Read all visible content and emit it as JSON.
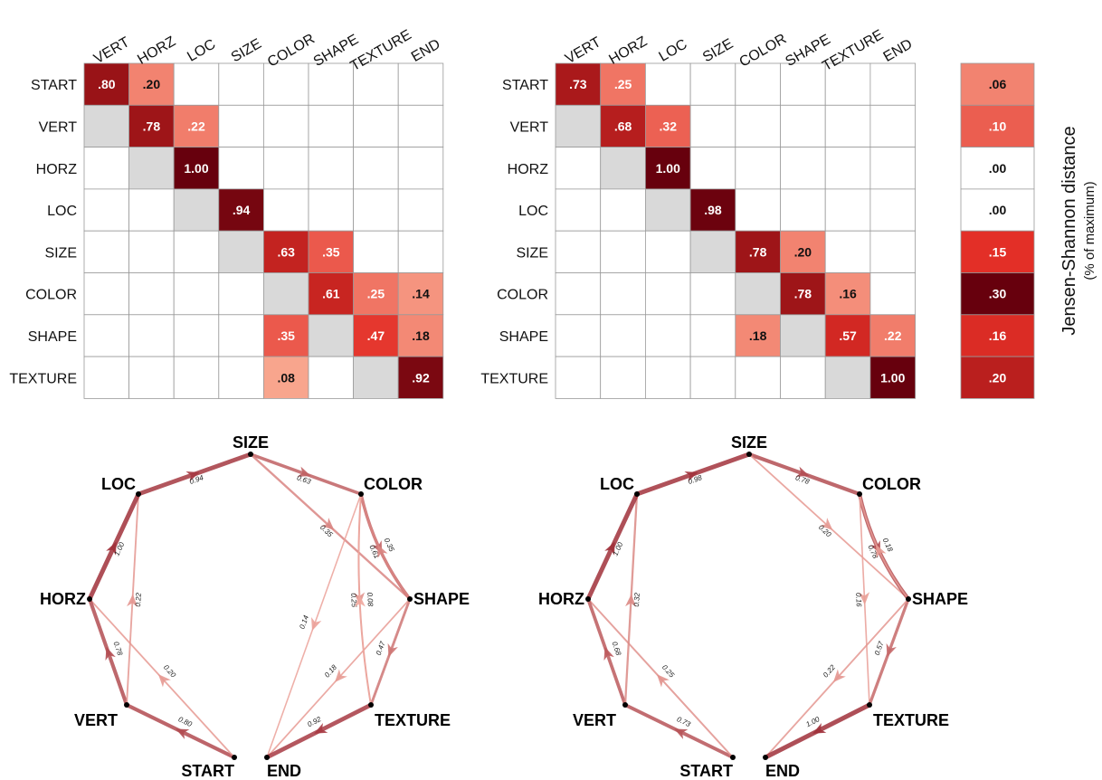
{
  "chart_data": [
    {
      "type": "heatmap",
      "panel": "left",
      "rows": [
        "START",
        "VERT",
        "HORZ",
        "LOC",
        "SIZE",
        "COLOR",
        "SHAPE",
        "TEXTURE"
      ],
      "columns": [
        "VERT",
        "HORZ",
        "LOC",
        "SIZE",
        "COLOR",
        "SHAPE",
        "TEXTURE",
        "END"
      ],
      "values": [
        [
          0.8,
          0.2,
          null,
          null,
          null,
          null,
          null,
          null
        ],
        [
          null,
          0.78,
          0.22,
          null,
          null,
          null,
          null,
          null
        ],
        [
          null,
          null,
          1.0,
          null,
          null,
          null,
          null,
          null
        ],
        [
          null,
          null,
          null,
          0.94,
          null,
          null,
          null,
          null
        ],
        [
          null,
          null,
          null,
          null,
          0.63,
          0.35,
          null,
          null
        ],
        [
          null,
          null,
          null,
          null,
          null,
          0.61,
          0.25,
          0.14
        ],
        [
          null,
          null,
          null,
          null,
          0.35,
          null,
          0.47,
          0.18
        ],
        [
          null,
          null,
          null,
          null,
          0.08,
          null,
          null,
          0.92
        ]
      ],
      "labels": [
        [
          ".80",
          ".20",
          "",
          "",
          "",
          "",
          "",
          ""
        ],
        [
          "",
          ".78",
          ".22",
          "",
          "",
          "",
          "",
          ""
        ],
        [
          "",
          "",
          "1.00",
          "",
          "",
          "",
          "",
          ""
        ],
        [
          "",
          "",
          "",
          ".94",
          "",
          "",
          "",
          ""
        ],
        [
          "",
          "",
          "",
          "",
          ".63",
          ".35",
          "",
          ""
        ],
        [
          "",
          "",
          "",
          "",
          "",
          ".61",
          ".25",
          ".14"
        ],
        [
          "",
          "",
          "",
          "",
          ".35",
          "",
          ".47",
          ".18"
        ],
        [
          "",
          "",
          "",
          "",
          ".08",
          "",
          "",
          ".92"
        ]
      ],
      "self_cells": [
        [
          1,
          0
        ],
        [
          2,
          1
        ],
        [
          3,
          2
        ],
        [
          4,
          3
        ],
        [
          5,
          4
        ],
        [
          6,
          5
        ],
        [
          7,
          6
        ]
      ],
      "self_color": "#d9d9d9"
    },
    {
      "type": "heatmap",
      "panel": "right",
      "rows": [
        "START",
        "VERT",
        "HORZ",
        "LOC",
        "SIZE",
        "COLOR",
        "SHAPE",
        "TEXTURE"
      ],
      "columns": [
        "VERT",
        "HORZ",
        "LOC",
        "SIZE",
        "COLOR",
        "SHAPE",
        "TEXTURE",
        "END"
      ],
      "values": [
        [
          0.73,
          0.25,
          null,
          null,
          null,
          null,
          null,
          null
        ],
        [
          null,
          0.68,
          0.32,
          null,
          null,
          null,
          null,
          null
        ],
        [
          null,
          null,
          1.0,
          null,
          null,
          null,
          null,
          null
        ],
        [
          null,
          null,
          null,
          0.98,
          null,
          null,
          null,
          null
        ],
        [
          null,
          null,
          null,
          null,
          0.78,
          0.2,
          null,
          null
        ],
        [
          null,
          null,
          null,
          null,
          null,
          0.78,
          0.16,
          null
        ],
        [
          null,
          null,
          null,
          null,
          0.18,
          null,
          0.57,
          0.22
        ],
        [
          null,
          null,
          null,
          null,
          null,
          null,
          null,
          1.0
        ]
      ],
      "labels": [
        [
          ".73",
          ".25",
          "",
          "",
          "",
          "",
          "",
          ""
        ],
        [
          "",
          ".68",
          ".32",
          "",
          "",
          "",
          "",
          ""
        ],
        [
          "",
          "",
          "1.00",
          "",
          "",
          "",
          "",
          ""
        ],
        [
          "",
          "",
          "",
          ".98",
          "",
          "",
          "",
          ""
        ],
        [
          "",
          "",
          "",
          "",
          ".78",
          ".20",
          "",
          ""
        ],
        [
          "",
          "",
          "",
          "",
          "",
          ".78",
          ".16",
          ""
        ],
        [
          "",
          "",
          "",
          "",
          ".18",
          "",
          ".57",
          ".22"
        ],
        [
          "",
          "",
          "",
          "",
          "",
          "",
          "",
          "1.00"
        ]
      ],
      "self_cells": [
        [
          1,
          0
        ],
        [
          2,
          1
        ],
        [
          3,
          2
        ],
        [
          4,
          3
        ],
        [
          5,
          4
        ],
        [
          6,
          5
        ],
        [
          7,
          6
        ]
      ],
      "self_color": "#d9d9d9"
    },
    {
      "type": "heatmap",
      "panel": "jensen-shannon",
      "title": "Jensen-Shannon distance",
      "subtitle": "(% of maximum)",
      "rows": [
        "START",
        "VERT",
        "HORZ",
        "LOC",
        "SIZE",
        "COLOR",
        "SHAPE",
        "TEXTURE"
      ],
      "values": [
        0.06,
        0.1,
        0.0,
        0.0,
        0.15,
        0.3,
        0.16,
        0.2
      ],
      "labels": [
        ".06",
        ".10",
        ".00",
        ".00",
        ".15",
        ".30",
        ".16",
        ".20"
      ]
    },
    {
      "type": "network",
      "panel": "left",
      "nodes": [
        "SIZE",
        "COLOR",
        "SHAPE",
        "TEXTURE",
        "END",
        "START",
        "VERT",
        "HORZ",
        "LOC"
      ],
      "edges": [
        {
          "from": "START",
          "to": "VERT",
          "value": 0.8,
          "label": "0.80"
        },
        {
          "from": "START",
          "to": "HORZ",
          "value": 0.2,
          "label": "0.20"
        },
        {
          "from": "VERT",
          "to": "HORZ",
          "value": 0.78,
          "label": "0.78"
        },
        {
          "from": "VERT",
          "to": "LOC",
          "value": 0.22,
          "label": "0.22"
        },
        {
          "from": "HORZ",
          "to": "LOC",
          "value": 1.0,
          "label": "1.00"
        },
        {
          "from": "LOC",
          "to": "SIZE",
          "value": 0.94,
          "label": "0.94"
        },
        {
          "from": "SIZE",
          "to": "COLOR",
          "value": 0.63,
          "label": "0.63"
        },
        {
          "from": "SIZE",
          "to": "SHAPE",
          "value": 0.35,
          "label": "0.35"
        },
        {
          "from": "COLOR",
          "to": "SHAPE",
          "value": 0.61,
          "label": "0.61"
        },
        {
          "from": "COLOR",
          "to": "TEXTURE",
          "value": 0.25,
          "label": "0.25"
        },
        {
          "from": "COLOR",
          "to": "END",
          "value": 0.14,
          "label": "0.14"
        },
        {
          "from": "SHAPE",
          "to": "COLOR",
          "value": 0.35,
          "label": "0.35"
        },
        {
          "from": "SHAPE",
          "to": "TEXTURE",
          "value": 0.47,
          "label": "0.47"
        },
        {
          "from": "SHAPE",
          "to": "END",
          "value": 0.18,
          "label": "0.18"
        },
        {
          "from": "TEXTURE",
          "to": "COLOR",
          "value": 0.08,
          "label": "0.08"
        },
        {
          "from": "TEXTURE",
          "to": "END",
          "value": 0.92,
          "label": "0.92"
        }
      ]
    },
    {
      "type": "network",
      "panel": "right",
      "nodes": [
        "SIZE",
        "COLOR",
        "SHAPE",
        "TEXTURE",
        "END",
        "START",
        "VERT",
        "HORZ",
        "LOC"
      ],
      "edges": [
        {
          "from": "START",
          "to": "VERT",
          "value": 0.73,
          "label": "0.73"
        },
        {
          "from": "START",
          "to": "HORZ",
          "value": 0.25,
          "label": "0.25"
        },
        {
          "from": "VERT",
          "to": "HORZ",
          "value": 0.68,
          "label": "0.68"
        },
        {
          "from": "VERT",
          "to": "LOC",
          "value": 0.32,
          "label": "0.32"
        },
        {
          "from": "HORZ",
          "to": "LOC",
          "value": 1.0,
          "label": "1.00"
        },
        {
          "from": "LOC",
          "to": "SIZE",
          "value": 0.98,
          "label": "0.98"
        },
        {
          "from": "SIZE",
          "to": "COLOR",
          "value": 0.78,
          "label": "0.78"
        },
        {
          "from": "SIZE",
          "to": "SHAPE",
          "value": 0.2,
          "label": "0.20"
        },
        {
          "from": "COLOR",
          "to": "SHAPE",
          "value": 0.78,
          "label": "0.78"
        },
        {
          "from": "COLOR",
          "to": "TEXTURE",
          "value": 0.16,
          "label": "0.16"
        },
        {
          "from": "SHAPE",
          "to": "COLOR",
          "value": 0.18,
          "label": "0.18"
        },
        {
          "from": "SHAPE",
          "to": "TEXTURE",
          "value": 0.57,
          "label": "0.57"
        },
        {
          "from": "SHAPE",
          "to": "END",
          "value": 0.22,
          "label": "0.22"
        },
        {
          "from": "TEXTURE",
          "to": "END",
          "value": 1.0,
          "label": "1.00"
        }
      ]
    }
  ],
  "colors": {
    "dark": "#67000d",
    "mid": "#e32f27",
    "light": "#fcbba1",
    "self": "#d9d9d9",
    "edge": "#a0303a",
    "grid": "#9a9a9a"
  }
}
